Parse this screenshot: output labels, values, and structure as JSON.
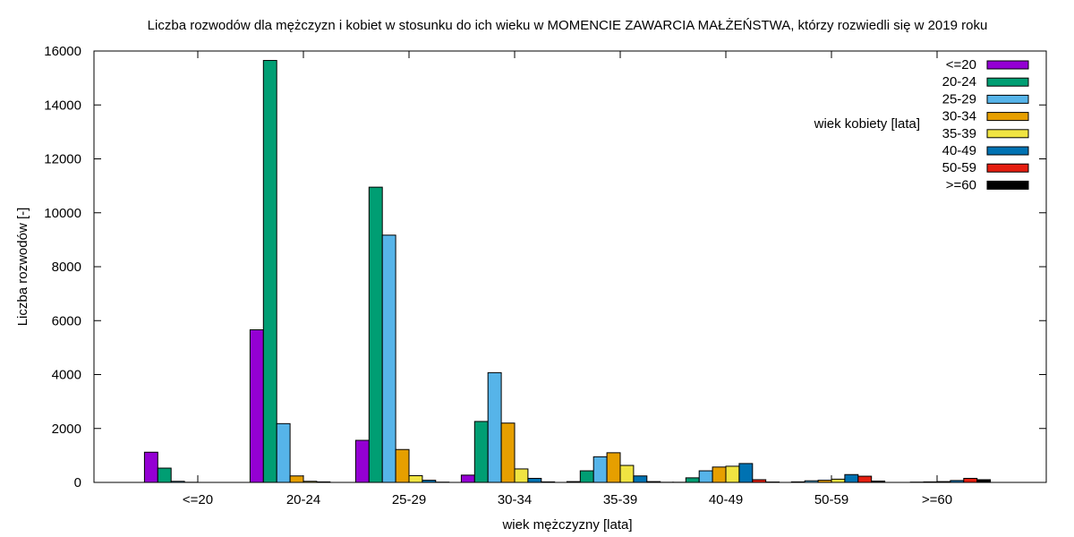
{
  "chart_data": {
    "type": "bar",
    "title": "Liczba rozwodów dla mężczyzn i kobiet w stosunku do ich wieku w MOMENCIE ZAWARCIA MAŁŻEŃSTWA, którzy rozwiedli się w 2019 roku",
    "xlabel": "wiek mężczyzny [lata]",
    "ylabel": "Liczba rozwodów [-]",
    "legend_title": "wiek kobiety [lata]",
    "legend_position": "top-right",
    "ylim": [
      0,
      16000
    ],
    "yticks": [
      0,
      2000,
      4000,
      6000,
      8000,
      10000,
      12000,
      14000,
      16000
    ],
    "categories": [
      "<=20",
      "20-24",
      "25-29",
      "30-34",
      "35-39",
      "40-49",
      "50-59",
      ">=60"
    ],
    "series": [
      {
        "name": "<=20",
        "color": "#9400d3",
        "values": [
          1120,
          5660,
          1560,
          270,
          30,
          5,
          0,
          0
        ]
      },
      {
        "name": "20-24",
        "color": "#009e73",
        "values": [
          530,
          15650,
          10950,
          2260,
          430,
          170,
          20,
          0
        ]
      },
      {
        "name": "25-29",
        "color": "#56b4e9",
        "values": [
          40,
          2180,
          9170,
          4070,
          950,
          430,
          60,
          10
        ]
      },
      {
        "name": "30-34",
        "color": "#e69f00",
        "values": [
          5,
          240,
          1220,
          2200,
          1100,
          570,
          80,
          20
        ]
      },
      {
        "name": "35-39",
        "color": "#f0e442",
        "values": [
          0,
          40,
          250,
          500,
          630,
          600,
          120,
          30
        ]
      },
      {
        "name": "40-49",
        "color": "#0072b2",
        "values": [
          0,
          20,
          80,
          150,
          240,
          700,
          290,
          70
        ]
      },
      {
        "name": "50-59",
        "color": "#e51e10",
        "values": [
          0,
          0,
          10,
          20,
          30,
          100,
          230,
          150
        ]
      },
      {
        "name": ">=60",
        "color": "#000000",
        "values": [
          0,
          0,
          0,
          0,
          5,
          15,
          50,
          100
        ]
      }
    ]
  }
}
